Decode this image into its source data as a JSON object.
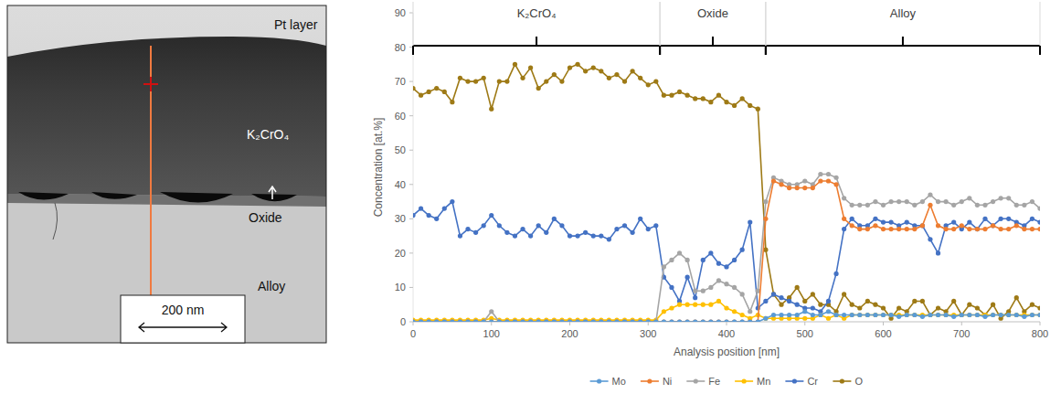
{
  "micrograph": {
    "labels": [
      "Pt layer",
      "K₂CrO₄",
      "Oxide",
      "Alloy"
    ],
    "scale_bar": "200 nm"
  },
  "chart_data": {
    "type": "line",
    "y_label": "Concentration [at.%]",
    "x_label": "Analysis position [nm]",
    "regions": [
      {
        "label": "K₂CrO₄",
        "start": 0,
        "end": 315
      },
      {
        "label": "Oxide",
        "start": 315,
        "end": 450
      },
      {
        "label": "Alloy",
        "start": 450,
        "end": 800
      }
    ],
    "xlim": [
      0,
      800
    ],
    "xticks": [
      0,
      100,
      200,
      300,
      400,
      500,
      600,
      700,
      800
    ],
    "ylim": [
      0,
      90
    ],
    "yticks": [
      0,
      10,
      20,
      30,
      40,
      50,
      60,
      70,
      80,
      90
    ],
    "grid": false,
    "legend": "bottom",
    "marker": "circle",
    "line_style": "solid",
    "x": [
      0,
      10,
      20,
      30,
      40,
      50,
      60,
      70,
      80,
      90,
      100,
      110,
      120,
      130,
      140,
      150,
      160,
      170,
      180,
      190,
      200,
      210,
      220,
      230,
      240,
      250,
      260,
      270,
      280,
      290,
      300,
      310,
      320,
      330,
      340,
      350,
      360,
      370,
      380,
      390,
      400,
      410,
      420,
      430,
      440,
      450,
      460,
      470,
      480,
      490,
      500,
      510,
      520,
      530,
      540,
      550,
      560,
      570,
      580,
      590,
      600,
      610,
      620,
      630,
      640,
      650,
      660,
      670,
      680,
      690,
      700,
      710,
      720,
      730,
      740,
      750,
      760,
      770,
      780,
      790,
      800
    ],
    "series": [
      {
        "name": "Mo",
        "color": "#5b9bd5",
        "values": [
          0,
          0,
          0,
          0,
          0,
          0,
          0,
          0,
          0,
          0,
          0,
          0,
          0,
          0,
          0,
          0,
          0,
          0,
          0,
          0,
          0,
          0,
          0,
          0,
          0,
          0,
          0,
          0,
          0,
          0,
          0,
          0,
          0,
          0,
          0,
          0,
          0,
          0,
          0,
          0,
          0,
          0,
          0,
          0,
          0,
          1,
          2,
          2,
          2,
          2,
          3,
          2,
          2,
          3,
          2,
          2,
          2,
          2,
          2,
          2,
          2,
          2,
          1.5,
          2,
          2,
          1.5,
          2,
          2,
          2,
          1.5,
          2,
          2,
          2,
          1.5,
          2,
          2,
          2,
          2,
          1.5,
          2,
          2
        ]
      },
      {
        "name": "Ni",
        "color": "#ed7d31",
        "values": [
          0,
          0,
          0,
          0,
          0,
          0,
          0,
          0,
          0,
          0,
          0,
          0,
          0,
          0,
          0,
          0,
          0,
          0,
          0,
          0,
          0,
          0,
          0,
          0,
          0,
          0,
          0,
          0,
          0,
          0,
          0,
          0,
          0,
          0,
          0,
          0,
          0,
          0,
          0,
          0,
          0,
          0,
          0,
          0,
          0,
          30,
          41,
          40,
          39,
          39,
          39,
          39,
          41,
          41,
          40,
          30,
          28,
          27,
          27,
          28,
          27,
          27,
          27,
          27,
          27,
          28,
          34,
          28,
          27,
          27,
          28,
          27,
          27,
          27,
          28,
          27,
          27,
          28,
          27,
          27,
          27
        ]
      },
      {
        "name": "Fe",
        "color": "#a5a5a5",
        "values": [
          0,
          0,
          0,
          0,
          0,
          0,
          0,
          0,
          0,
          0,
          3,
          0,
          0,
          0,
          0,
          0,
          0,
          0,
          0,
          0,
          0,
          0,
          0,
          0,
          0,
          0,
          0,
          0,
          0,
          0,
          0,
          0,
          16,
          18,
          20,
          18,
          9,
          9,
          10,
          12,
          11,
          10,
          8,
          3,
          9,
          35,
          42,
          41,
          40,
          40,
          41,
          40,
          43,
          43,
          42,
          36,
          34,
          34,
          34,
          35,
          34,
          35,
          35,
          35,
          34,
          35,
          37,
          35,
          35,
          34,
          35,
          36,
          34,
          34,
          35,
          36,
          36,
          34,
          34,
          35,
          33
        ]
      },
      {
        "name": "Mn",
        "color": "#ffc000",
        "values": [
          0.5,
          0.5,
          0.5,
          0.5,
          0.5,
          0.5,
          0.5,
          0.5,
          0.5,
          0.5,
          1,
          0.5,
          0.5,
          0.5,
          0.5,
          0.5,
          0.5,
          0.5,
          0.5,
          0.5,
          0.5,
          0.5,
          0.5,
          0.5,
          0.5,
          0.5,
          0.5,
          0.5,
          0.5,
          0.5,
          0.5,
          0.5,
          3,
          4,
          5,
          5,
          5,
          5,
          5,
          6,
          4,
          3,
          2,
          1,
          2,
          1,
          1,
          1,
          1,
          1,
          1,
          1,
          2,
          1,
          2,
          1,
          2,
          2,
          2,
          2,
          2,
          2,
          2,
          2,
          2,
          2,
          2,
          2,
          2,
          2,
          2,
          2,
          2,
          2,
          2,
          2,
          2,
          2,
          2,
          2,
          2
        ]
      },
      {
        "name": "Cr",
        "color": "#4472c4",
        "values": [
          31,
          33,
          31,
          30,
          33,
          35,
          25,
          27,
          26,
          28,
          31,
          28,
          26,
          25,
          27,
          25,
          28,
          26,
          30,
          28,
          25,
          25,
          26,
          25,
          25,
          24,
          27,
          28,
          26,
          30,
          27,
          28,
          13,
          10,
          6,
          13,
          7,
          18,
          20,
          17,
          16,
          18,
          21,
          29,
          4,
          6,
          8,
          7,
          6,
          5,
          4,
          4,
          3,
          6,
          14,
          27,
          30,
          28,
          28,
          30,
          29,
          29,
          28,
          29,
          28,
          28,
          24,
          20,
          28,
          29,
          27,
          29,
          27,
          30,
          28,
          30,
          30,
          29,
          28,
          30,
          29
        ]
      },
      {
        "name": "O",
        "color": "#9e7a16",
        "values": [
          68,
          66,
          67,
          68,
          67,
          64,
          71,
          70,
          70,
          71,
          62,
          70,
          70,
          75,
          71,
          74,
          68,
          70,
          72,
          70,
          74,
          75,
          73,
          74,
          73,
          71,
          72,
          70,
          73,
          71,
          69,
          70,
          66,
          66,
          67,
          66,
          65,
          65,
          64,
          66,
          64,
          63,
          65,
          63,
          62,
          21,
          8,
          5,
          7,
          10,
          6,
          8,
          5,
          5,
          3,
          8,
          5,
          4,
          6,
          5,
          4,
          1,
          4,
          3,
          6,
          6,
          2,
          4,
          3,
          6,
          2,
          5,
          4,
          2,
          5,
          1,
          3,
          7,
          3,
          5,
          4
        ]
      }
    ]
  }
}
